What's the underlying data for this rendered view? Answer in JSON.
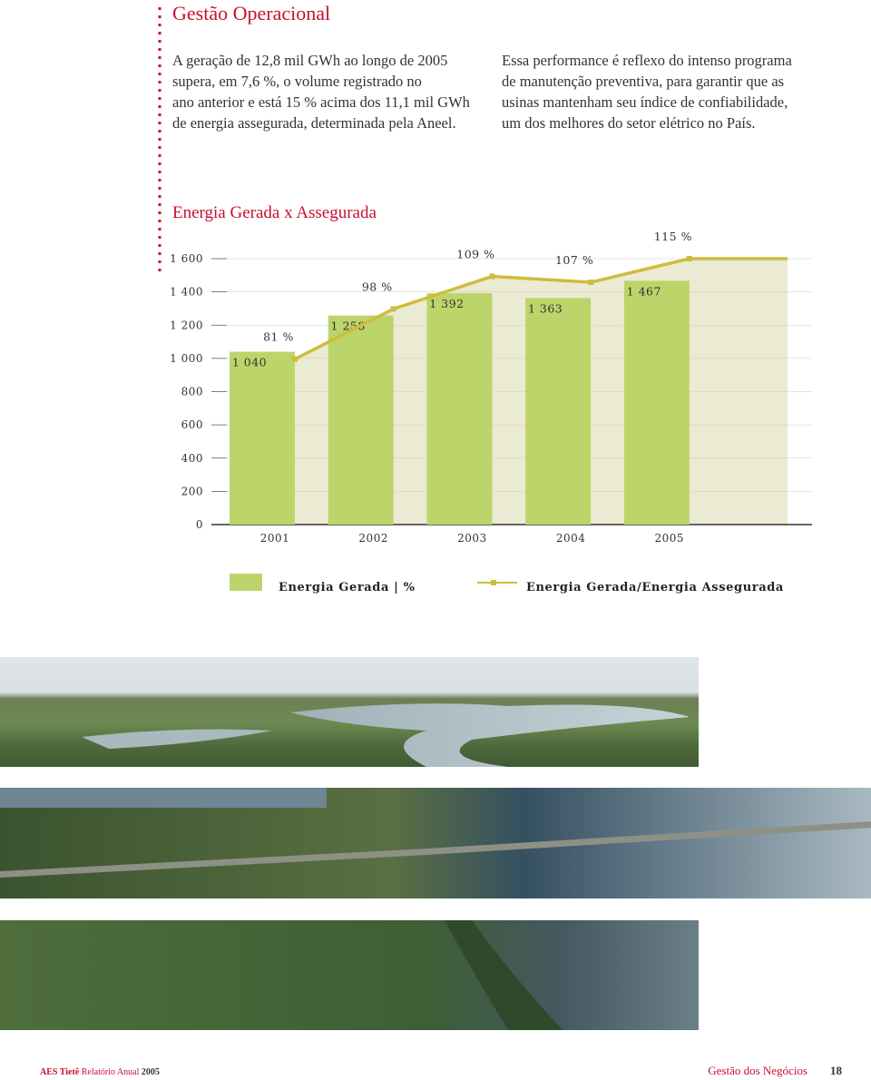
{
  "header": {
    "title": "Gestão Operacional"
  },
  "intro": {
    "left": [
      "A geração de 12,8 mil GWh ao longo de 2005",
      "supera, em 7,6 %, o volume registrado no",
      "ano anterior e está 15 % acima dos 11,1 mil GWh",
      "de energia assegurada, determinada pela Aneel."
    ],
    "right": [
      "Essa performance é reflexo do intenso programa",
      "de manutenção preventiva, para garantir que as",
      "usinas mantenham seu índice de confiabilidade,",
      "um dos melhores do setor elétrico no País."
    ]
  },
  "chart_data": {
    "type": "bar",
    "title": "Energia Gerada x Assegurada",
    "categories": [
      "2001",
      "2002",
      "2003",
      "2004",
      "2005"
    ],
    "series": [
      {
        "name": "Energia Gerada | %",
        "color": "#bdd46a",
        "values": [
          1040,
          1258,
          1392,
          1363,
          1467
        ],
        "value_labels": [
          "1 040",
          "1 258",
          "1 392",
          "1 363",
          "1 467"
        ]
      },
      {
        "name": "Energia Gerada/Energia Assegurada",
        "type": "line",
        "axis": "y2",
        "color": "#cdbd3c",
        "values": [
          81,
          98,
          109,
          107,
          115
        ],
        "value_labels": [
          "81 %",
          "98 %",
          "109 %",
          "107 %",
          "115 %"
        ]
      }
    ],
    "ylim": [
      0,
      1600
    ],
    "yticks": [
      0,
      200,
      400,
      600,
      800,
      {
        "value": 1000,
        "label": "1 000"
      },
      {
        "value": 1200,
        "label": "1 200"
      },
      {
        "value": 1400,
        "label": "1 400"
      },
      {
        "value": 1600,
        "label": "1 600"
      }
    ],
    "y2lim": [
      25,
      115
    ],
    "area_color": "#ebead2",
    "grid": true
  },
  "footer": {
    "brand": "AES Tietê",
    "report": "Relatório Anual",
    "year": "2005",
    "section": "Gestão dos Negócios",
    "page": "18"
  }
}
